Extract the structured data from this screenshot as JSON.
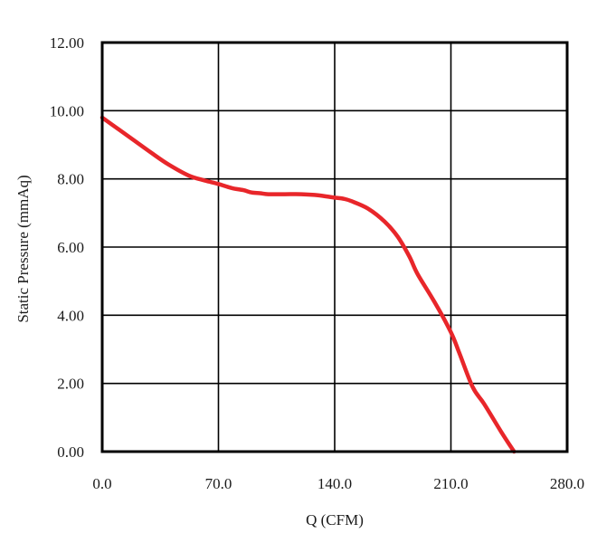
{
  "chart_data": {
    "type": "line",
    "title": "",
    "xlabel": "Q (CFM)",
    "ylabel": "Static Pressure (mmAq)",
    "xlim": [
      0,
      280
    ],
    "ylim": [
      0,
      12
    ],
    "x_ticks": [
      0,
      70,
      140,
      210,
      280
    ],
    "x_tick_labels": [
      "0.0",
      "70.0",
      "140.0",
      "210.0",
      "280.0"
    ],
    "y_ticks": [
      0,
      2,
      4,
      6,
      8,
      10,
      12
    ],
    "y_tick_labels": [
      "0.00",
      "2.00",
      "4.00",
      "6.00",
      "8.00",
      "10.00",
      "12.00"
    ],
    "grid": true,
    "series": [
      {
        "color": "#e8262a",
        "x": [
          0,
          10,
          20,
          30,
          40,
          52,
          62,
          70,
          78,
          85,
          90,
          95,
          100,
          110,
          120,
          130,
          140,
          145,
          150,
          160,
          170,
          178,
          185,
          190,
          200,
          210,
          215,
          223,
          230,
          240,
          248
        ],
        "y": [
          9.8,
          9.45,
          9.1,
          8.75,
          8.42,
          8.1,
          7.95,
          7.85,
          7.73,
          7.67,
          7.6,
          7.58,
          7.55,
          7.55,
          7.55,
          7.52,
          7.45,
          7.42,
          7.35,
          7.13,
          6.75,
          6.3,
          5.72,
          5.2,
          4.4,
          3.5,
          2.9,
          1.9,
          1.4,
          0.6,
          0.0
        ]
      }
    ]
  }
}
